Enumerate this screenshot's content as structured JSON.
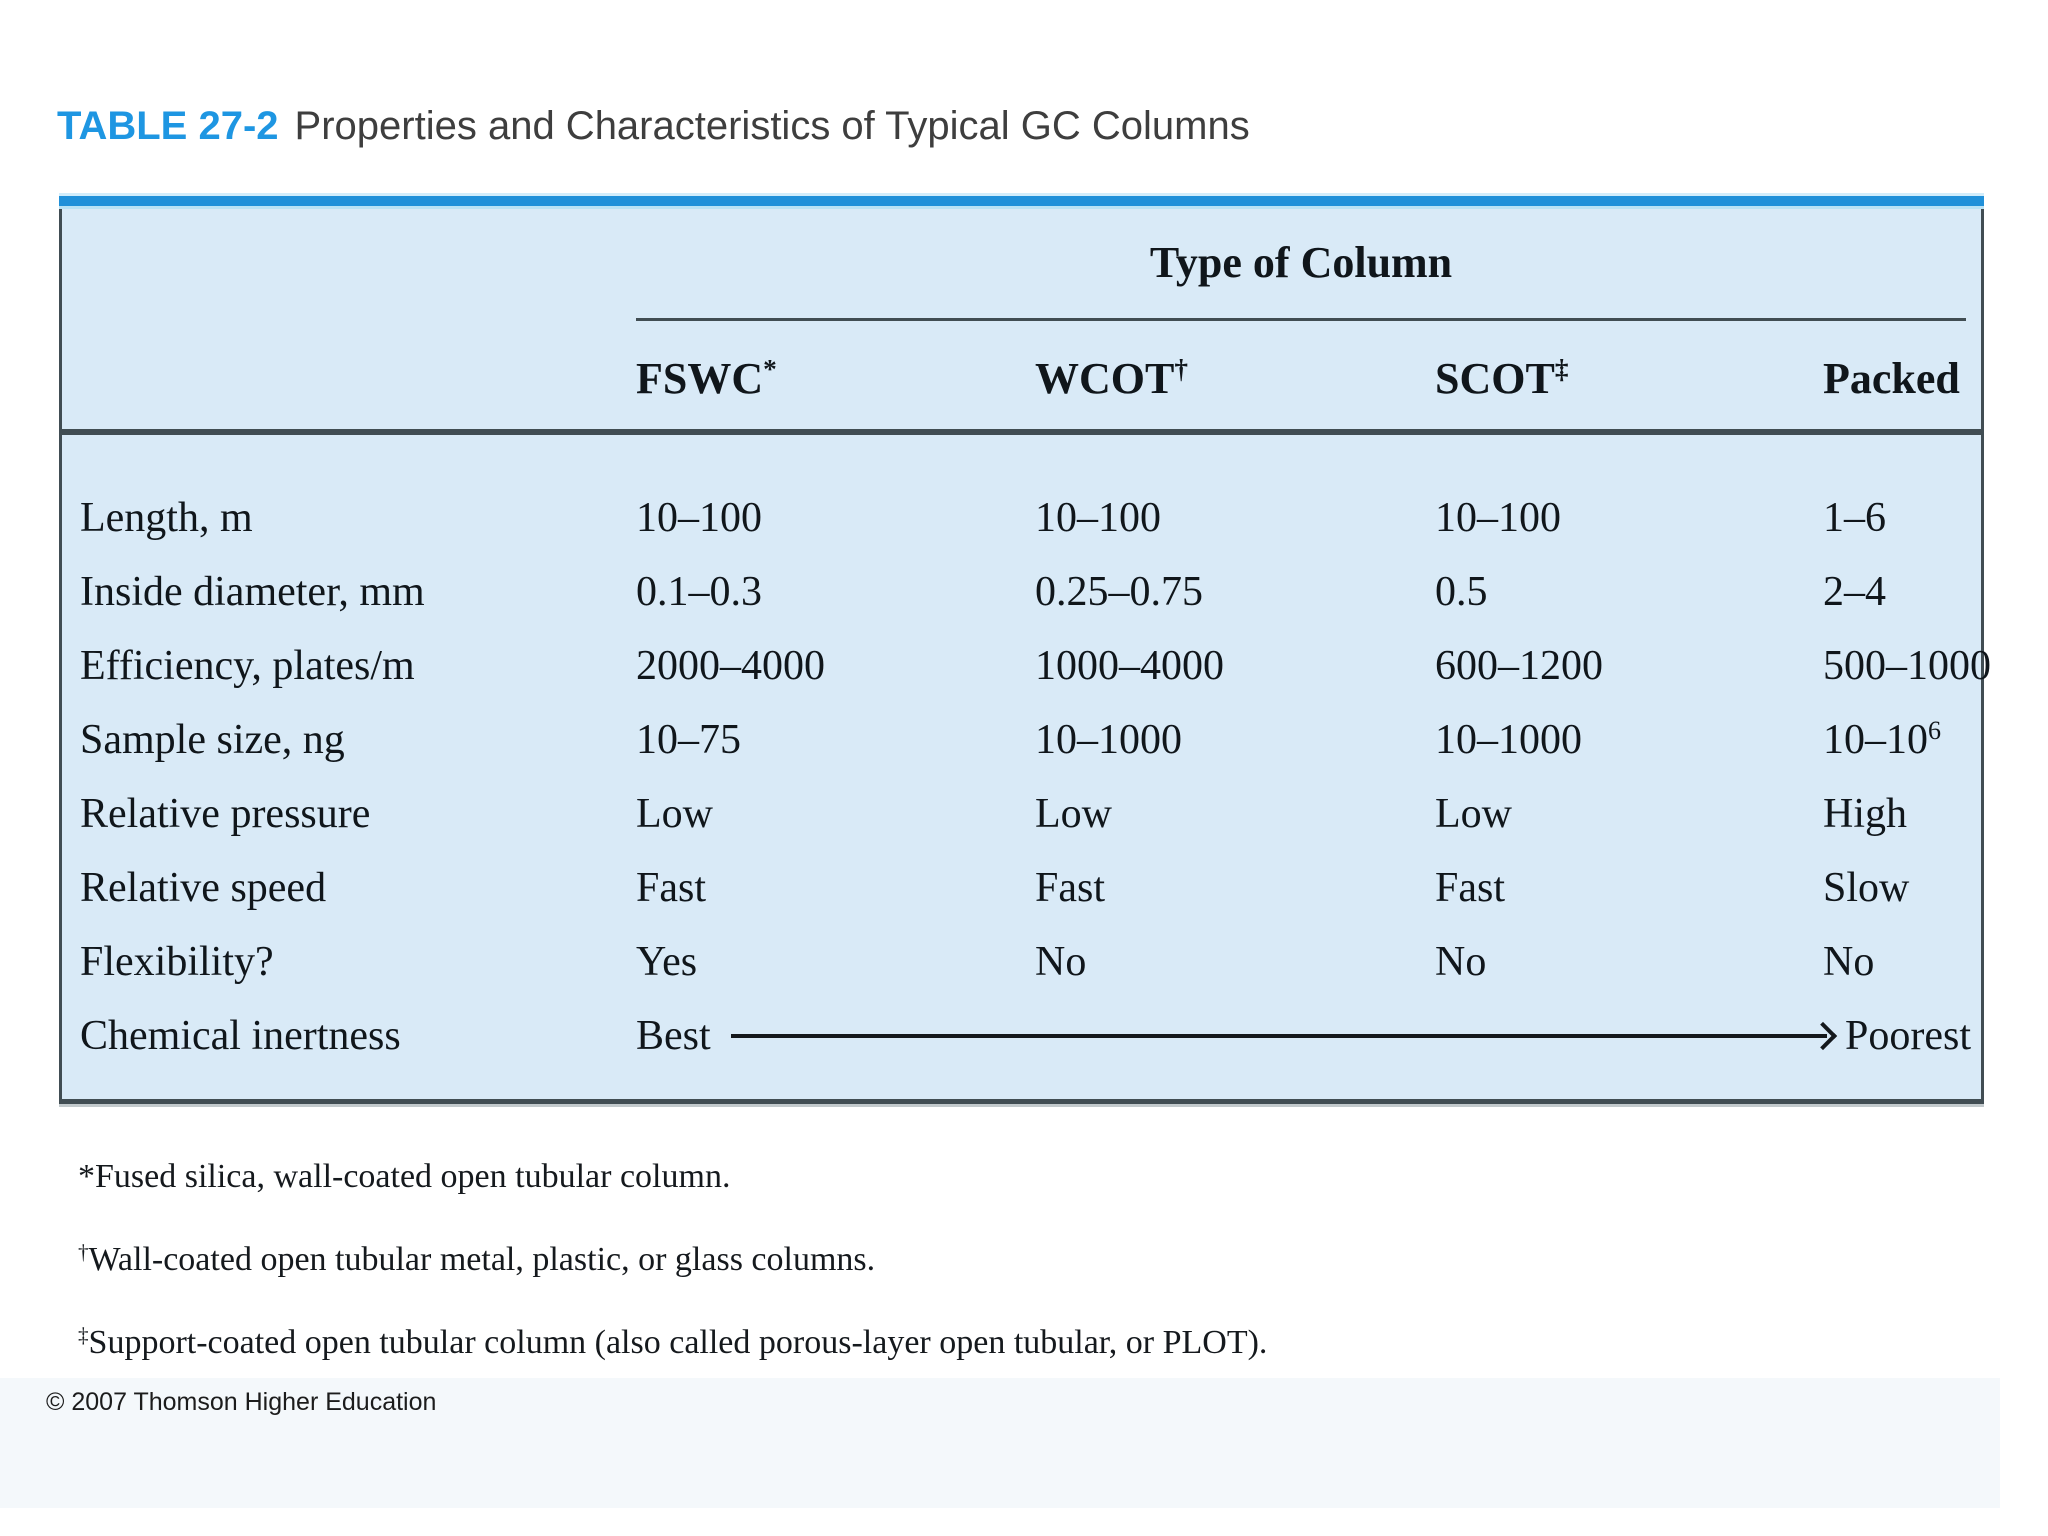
{
  "title": {
    "label": "TABLE 27-2",
    "text": "Properties and Characteristics of Typical GC Columns"
  },
  "table": {
    "group_header": "Type of Column",
    "columns": [
      {
        "text": "FSWC",
        "sup": "*"
      },
      {
        "text": "WCOT",
        "sup": "†"
      },
      {
        "text": "SCOT",
        "sup": "‡"
      },
      {
        "text": "Packed",
        "sup": ""
      }
    ],
    "rows": [
      {
        "label": "Length, m",
        "values": [
          "10–100",
          "10–100",
          "10–100",
          "1–6"
        ]
      },
      {
        "label": "Inside diameter, mm",
        "values": [
          "0.1–0.3",
          "0.25–0.75",
          "0.5",
          "2–4"
        ]
      },
      {
        "label": "Efficiency, plates/m",
        "values": [
          "2000–4000",
          "1000–4000",
          "600–1200",
          "500–1000"
        ]
      },
      {
        "label": "Sample size, ng",
        "values": [
          "10–75",
          "10–1000",
          "10–1000",
          {
            "text": "10–10",
            "sup": "6"
          }
        ]
      },
      {
        "label": "Relative pressure",
        "values": [
          "Low",
          "Low",
          "Low",
          "High"
        ]
      },
      {
        "label": "Relative speed",
        "values": [
          "Fast",
          "Fast",
          "Fast",
          "Slow"
        ]
      },
      {
        "label": "Flexibility?",
        "values": [
          "Yes",
          "No",
          "No",
          "No"
        ]
      },
      {
        "label": "Chemical inertness",
        "arrow": {
          "from": "Best",
          "to": "Poorest"
        }
      }
    ]
  },
  "footnotes": [
    {
      "marker": "*",
      "sup": false,
      "text": "Fused silica, wall-coated open tubular column."
    },
    {
      "marker": "†",
      "sup": true,
      "text": "Wall-coated open tubular metal, plastic, or glass columns."
    },
    {
      "marker": "‡",
      "sup": true,
      "text": "Support-coated open tubular column (also called porous-layer open tubular, or PLOT)."
    }
  ],
  "copyright": "© 2007 Thomson Higher Education",
  "colors": {
    "accent_blue": "#2090d9",
    "table_bg": "#d9eaf7",
    "rule_dark": "#414d53",
    "title_blue": "#1e96e2",
    "text_dark": "#10161b",
    "title_gray": "#3e3e3e"
  }
}
